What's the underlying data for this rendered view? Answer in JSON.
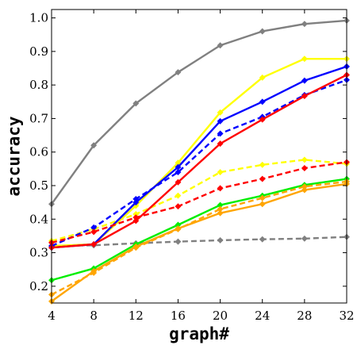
{
  "chart_data": {
    "type": "line",
    "title": "",
    "xlabel": "graph#",
    "ylabel": "accuracy",
    "x": [
      4,
      8,
      12,
      16,
      20,
      24,
      28,
      32
    ],
    "x_ticks": [
      "4",
      "8",
      "12",
      "16",
      "20",
      "24",
      "28",
      "32"
    ],
    "y_ticks": [
      "0.2",
      "0.3",
      "0.4",
      "0.5",
      "0.6",
      "0.7",
      "0.8",
      "0.9",
      "1.0"
    ],
    "xlim": [
      4,
      32
    ],
    "ylim": [
      0.15,
      1.025
    ],
    "grid": false,
    "legend": "none",
    "series": [
      {
        "color": "#808080",
        "dash": "solid",
        "values": [
          0.445,
          0.62,
          0.745,
          0.838,
          0.918,
          0.96,
          0.982,
          0.992
        ]
      },
      {
        "color": "#808080",
        "dash": "dashed",
        "values": [
          0.32,
          0.322,
          0.328,
          0.333,
          0.337,
          0.34,
          0.342,
          0.347
        ]
      },
      {
        "color": "#ffff00",
        "dash": "solid",
        "values": [
          0.32,
          0.325,
          0.44,
          0.568,
          0.718,
          0.822,
          0.878,
          0.878
        ]
      },
      {
        "color": "#ffff00",
        "dash": "dashed",
        "values": [
          0.335,
          0.37,
          0.415,
          0.47,
          0.54,
          0.562,
          0.577,
          0.565
        ]
      },
      {
        "color": "#0000ff",
        "dash": "solid",
        "values": [
          0.315,
          0.325,
          0.45,
          0.555,
          0.692,
          0.75,
          0.813,
          0.855
        ]
      },
      {
        "color": "#0000ff",
        "dash": "dashed",
        "values": [
          0.32,
          0.375,
          0.46,
          0.54,
          0.655,
          0.705,
          0.77,
          0.815
        ]
      },
      {
        "color": "#ff0000",
        "dash": "solid",
        "values": [
          0.315,
          0.325,
          0.395,
          0.51,
          0.625,
          0.697,
          0.767,
          0.83
        ]
      },
      {
        "color": "#ff0000",
        "dash": "dashed",
        "values": [
          0.33,
          0.362,
          0.405,
          0.438,
          0.492,
          0.52,
          0.552,
          0.57
        ]
      },
      {
        "color": "#00ee00",
        "dash": "solid",
        "values": [
          0.218,
          0.253,
          0.325,
          0.383,
          0.442,
          0.47,
          0.502,
          0.52
        ]
      },
      {
        "color": "#ffa500",
        "dash": "solid",
        "values": [
          0.155,
          0.245,
          0.318,
          0.372,
          0.418,
          0.445,
          0.487,
          0.505
        ]
      },
      {
        "color": "#ffa500",
        "dash": "dashed",
        "values": [
          0.175,
          0.24,
          0.315,
          0.37,
          0.43,
          0.463,
          0.497,
          0.512
        ]
      }
    ]
  }
}
